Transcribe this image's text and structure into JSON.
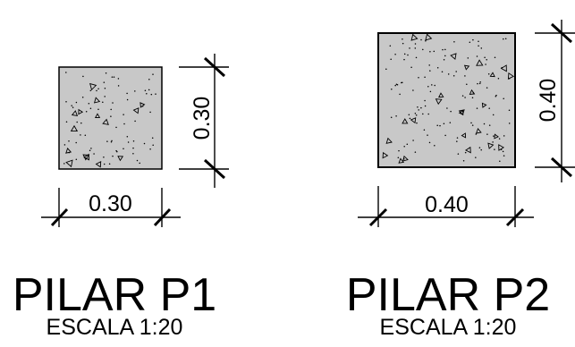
{
  "drawing": {
    "colors": {
      "line": "#000000",
      "concrete_fill": "#c8c8c8",
      "background": "#ffffff"
    },
    "columns": [
      {
        "id": "p1",
        "title": "PILAR P1",
        "scale": "ESCALA 1:20",
        "width_label": "0.30",
        "height_label": "0.30",
        "width_m": 0.3,
        "height_m": 0.3
      },
      {
        "id": "p2",
        "title": "PILAR P2",
        "scale": "ESCALA 1:20",
        "width_label": "0.40",
        "height_label": "0.40",
        "width_m": 0.4,
        "height_m": 0.4
      }
    ]
  }
}
